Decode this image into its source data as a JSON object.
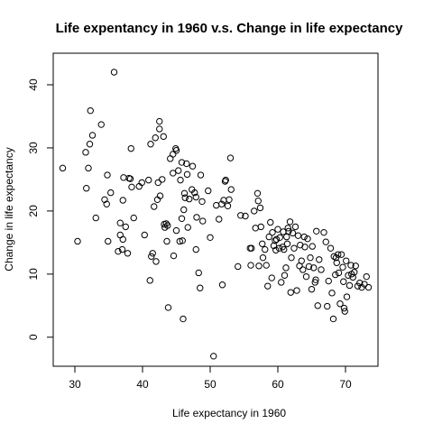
{
  "chart_data": {
    "type": "scatter",
    "title": "Life expentancy in 1960 v.s. Change in life expectancy",
    "xlabel": "Life expectancy in 1960",
    "ylabel": "Change in life expectancy",
    "xlim": [
      26.8,
      74.8
    ],
    "ylim": [
      -4.6,
      45.0
    ],
    "xticks": [
      30,
      40,
      50,
      60,
      70
    ],
    "yticks": [
      0,
      10,
      20,
      30,
      40
    ],
    "grid": false,
    "points": [
      [
        28.2,
        26.8
      ],
      [
        30.4,
        15.2
      ],
      [
        31.6,
        29.3
      ],
      [
        31.7,
        23.6
      ],
      [
        32.0,
        26.8
      ],
      [
        32.2,
        30.6
      ],
      [
        32.3,
        35.9
      ],
      [
        32.6,
        32.0
      ],
      [
        33.1,
        18.9
      ],
      [
        33.9,
        33.7
      ],
      [
        34.4,
        21.8
      ],
      [
        34.8,
        25.7
      ],
      [
        34.7,
        21.1
      ],
      [
        34.9,
        15.2
      ],
      [
        35.3,
        22.9
      ],
      [
        35.8,
        42.0
      ],
      [
        36.4,
        13.6
      ],
      [
        36.7,
        16.2
      ],
      [
        36.7,
        18.1
      ],
      [
        37.0,
        13.9
      ],
      [
        37.1,
        15.5
      ],
      [
        37.1,
        21.7
      ],
      [
        37.2,
        25.3
      ],
      [
        37.5,
        17.5
      ],
      [
        37.8,
        13.3
      ],
      [
        38.0,
        25.2
      ],
      [
        38.2,
        25.1
      ],
      [
        38.3,
        29.9
      ],
      [
        38.4,
        23.8
      ],
      [
        38.7,
        18.9
      ],
      [
        39.5,
        23.9
      ],
      [
        39.9,
        24.5
      ],
      [
        40.3,
        16.2
      ],
      [
        40.9,
        24.9
      ],
      [
        41.1,
        9.0
      ],
      [
        41.2,
        30.6
      ],
      [
        41.3,
        12.8
      ],
      [
        41.5,
        13.3
      ],
      [
        41.7,
        20.7
      ],
      [
        41.9,
        31.6
      ],
      [
        42.0,
        12.0
      ],
      [
        42.2,
        21.8
      ],
      [
        42.3,
        24.5
      ],
      [
        42.5,
        33.0
      ],
      [
        42.5,
        34.2
      ],
      [
        42.6,
        22.4
      ],
      [
        42.9,
        25.0
      ],
      [
        43.1,
        31.8
      ],
      [
        43.2,
        17.9
      ],
      [
        43.3,
        17.4
      ],
      [
        43.5,
        18.0
      ],
      [
        43.6,
        15.2
      ],
      [
        43.7,
        17.7
      ],
      [
        43.8,
        4.7
      ],
      [
        44.1,
        28.3
      ],
      [
        44.5,
        26.0
      ],
      [
        44.5,
        29.0
      ],
      [
        44.6,
        12.9
      ],
      [
        44.9,
        29.9
      ],
      [
        45.0,
        16.9
      ],
      [
        45.0,
        29.6
      ],
      [
        45.3,
        26.4
      ],
      [
        45.5,
        15.2
      ],
      [
        45.6,
        24.9
      ],
      [
        45.8,
        18.8
      ],
      [
        45.8,
        27.7
      ],
      [
        45.9,
        15.3
      ],
      [
        46.0,
        2.9
      ],
      [
        46.1,
        20.2
      ],
      [
        46.2,
        22.8
      ],
      [
        46.3,
        22.1
      ],
      [
        46.5,
        27.5
      ],
      [
        46.6,
        25.8
      ],
      [
        46.7,
        17.4
      ],
      [
        46.9,
        21.9
      ],
      [
        47.3,
        23.4
      ],
      [
        47.4,
        27.1
      ],
      [
        47.7,
        22.9
      ],
      [
        47.9,
        13.9
      ],
      [
        47.9,
        22.2
      ],
      [
        48.0,
        19.0
      ],
      [
        48.3,
        10.2
      ],
      [
        48.5,
        7.8
      ],
      [
        48.6,
        25.7
      ],
      [
        48.8,
        21.5
      ],
      [
        48.9,
        18.4
      ],
      [
        49.7,
        23.2
      ],
      [
        50.0,
        15.8
      ],
      [
        50.5,
        -3.0
      ],
      [
        50.9,
        20.9
      ],
      [
        51.3,
        18.7
      ],
      [
        51.7,
        21.1
      ],
      [
        51.8,
        8.3
      ],
      [
        52.0,
        21.7
      ],
      [
        52.2,
        24.7
      ],
      [
        52.3,
        24.9
      ],
      [
        52.6,
        20.8
      ],
      [
        52.8,
        21.8
      ],
      [
        53.0,
        28.4
      ],
      [
        53.1,
        23.4
      ],
      [
        54.1,
        11.2
      ],
      [
        54.5,
        19.3
      ],
      [
        55.2,
        19.2
      ],
      [
        55.9,
        14.1
      ],
      [
        56.0,
        11.4
      ],
      [
        56.1,
        14.1
      ],
      [
        56.5,
        20.0
      ],
      [
        56.7,
        17.3
      ],
      [
        57.0,
        22.8
      ],
      [
        57.1,
        21.6
      ],
      [
        57.2,
        11.3
      ],
      [
        57.4,
        20.5
      ],
      [
        57.5,
        17.5
      ],
      [
        57.7,
        14.8
      ],
      [
        57.8,
        12.6
      ],
      [
        58.1,
        13.9
      ],
      [
        58.3,
        11.4
      ],
      [
        58.5,
        8.1
      ],
      [
        58.7,
        15.9
      ],
      [
        58.9,
        18.2
      ],
      [
        59.1,
        9.4
      ],
      [
        59.2,
        16.6
      ],
      [
        59.4,
        14.5
      ],
      [
        59.6,
        15.3
      ],
      [
        59.7,
        13.8
      ],
      [
        59.8,
        15.5
      ],
      [
        60.0,
        17.1
      ],
      [
        60.2,
        14.1
      ],
      [
        60.3,
        15.8
      ],
      [
        60.5,
        8.7
      ],
      [
        60.7,
        14.3
      ],
      [
        60.8,
        16.7
      ],
      [
        60.9,
        13.9
      ],
      [
        61.0,
        9.8
      ],
      [
        61.2,
        11.0
      ],
      [
        61.3,
        15.9
      ],
      [
        61.4,
        14.8
      ],
      [
        61.5,
        17.3
      ],
      [
        61.6,
        16.8
      ],
      [
        61.8,
        18.3
      ],
      [
        61.9,
        7.1
      ],
      [
        62.0,
        12.6
      ],
      [
        62.2,
        16.5
      ],
      [
        62.4,
        14.1
      ],
      [
        62.6,
        17.5
      ],
      [
        62.8,
        7.4
      ],
      [
        63.0,
        16.1
      ],
      [
        63.2,
        11.3
      ],
      [
        63.3,
        14.6
      ],
      [
        63.5,
        12.1
      ],
      [
        63.7,
        10.7
      ],
      [
        63.9,
        15.9
      ],
      [
        64.0,
        14.3
      ],
      [
        64.2,
        9.6
      ],
      [
        64.4,
        15.6
      ],
      [
        64.6,
        11.2
      ],
      [
        64.8,
        12.6
      ],
      [
        65.0,
        7.6
      ],
      [
        65.1,
        14.4
      ],
      [
        65.3,
        11.0
      ],
      [
        65.5,
        8.7
      ],
      [
        65.6,
        9.1
      ],
      [
        65.7,
        16.8
      ],
      [
        65.9,
        5.0
      ],
      [
        66.1,
        12.3
      ],
      [
        66.4,
        10.7
      ],
      [
        66.8,
        16.6
      ],
      [
        67.1,
        15.1
      ],
      [
        67.3,
        4.9
      ],
      [
        67.5,
        8.9
      ],
      [
        67.8,
        14.1
      ],
      [
        68.0,
        7.0
      ],
      [
        68.2,
        2.9
      ],
      [
        68.3,
        12.8
      ],
      [
        68.5,
        9.9
      ],
      [
        68.6,
        12.6
      ],
      [
        68.7,
        11.8
      ],
      [
        68.9,
        13.1
      ],
      [
        69.0,
        10.2
      ],
      [
        69.2,
        5.3
      ],
      [
        69.4,
        13.1
      ],
      [
        69.6,
        11.1
      ],
      [
        69.7,
        8.8
      ],
      [
        69.8,
        4.6
      ],
      [
        69.9,
        4.1
      ],
      [
        70.1,
        12.1
      ],
      [
        70.2,
        6.4
      ],
      [
        70.4,
        9.8
      ],
      [
        70.6,
        8.2
      ],
      [
        70.8,
        11.4
      ],
      [
        70.9,
        10.0
      ],
      [
        71.1,
        9.5
      ],
      [
        71.3,
        10.3
      ],
      [
        71.5,
        11.3
      ],
      [
        71.8,
        8.1
      ],
      [
        72.1,
        8.6
      ],
      [
        72.4,
        7.9
      ],
      [
        72.8,
        8.4
      ],
      [
        73.1,
        9.6
      ],
      [
        73.4,
        7.9
      ]
    ]
  }
}
